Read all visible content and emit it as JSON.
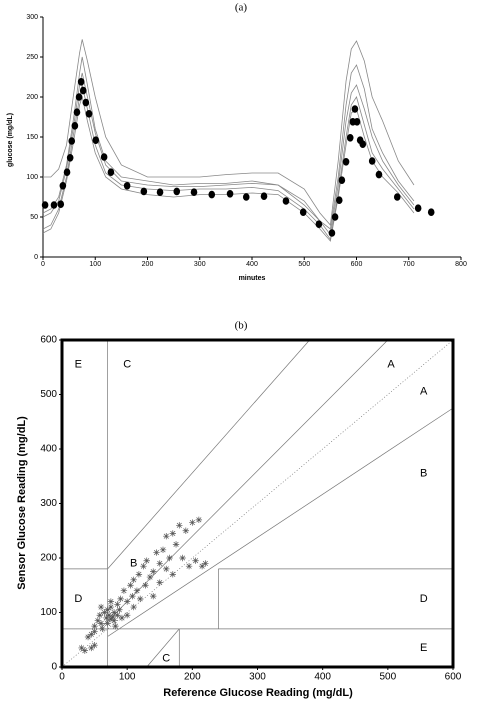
{
  "chart_data": [
    {
      "type": "line",
      "title": "(a)",
      "xlabel": "minutes",
      "ylabel": "glucose (mg/dL)",
      "xlim": [
        0,
        800
      ],
      "ylim": [
        0,
        300
      ],
      "xticks": [
        0,
        100,
        200,
        300,
        400,
        500,
        600,
        700,
        800
      ],
      "yticks": [
        0,
        50,
        100,
        150,
        200,
        250,
        300
      ],
      "x": [
        0,
        15,
        30,
        45,
        60,
        70,
        75,
        85,
        100,
        120,
        150,
        200,
        250,
        300,
        350,
        400,
        450,
        500,
        530,
        550,
        565,
        580,
        590,
        600,
        615,
        630,
        650,
        680,
        710
      ],
      "series": [
        {
          "color": "#888888",
          "values": [
            100,
            100,
            110,
            140,
            210,
            255,
            272,
            245,
            200,
            150,
            115,
            100,
            100,
            100,
            103,
            105,
            105,
            85,
            55,
            40,
            120,
            220,
            260,
            270,
            245,
            200,
            170,
            120,
            90
          ]
        },
        {
          "color": "#888888",
          "values": [
            55,
            60,
            75,
            115,
            180,
            230,
            250,
            215,
            160,
            120,
            100,
            95,
            90,
            92,
            92,
            95,
            90,
            70,
            45,
            35,
            100,
            190,
            230,
            240,
            210,
            160,
            130,
            95,
            70
          ]
        },
        {
          "color": "#888888",
          "values": [
            50,
            55,
            70,
            110,
            170,
            215,
            230,
            200,
            155,
            115,
            95,
            90,
            88,
            88,
            90,
            92,
            90,
            65,
            45,
            28,
            90,
            170,
            205,
            215,
            185,
            150,
            120,
            90,
            65
          ]
        },
        {
          "color": "#888888",
          "values": [
            35,
            40,
            60,
            100,
            160,
            200,
            215,
            185,
            140,
            105,
            90,
            85,
            83,
            85,
            85,
            87,
            83,
            60,
            40,
            22,
            80,
            150,
            190,
            200,
            165,
            130,
            110,
            85,
            60
          ]
        },
        {
          "color": "#888888",
          "values": [
            30,
            35,
            55,
            95,
            150,
            190,
            200,
            170,
            130,
            100,
            85,
            78,
            75,
            78,
            78,
            80,
            78,
            55,
            35,
            20,
            75,
            140,
            180,
            185,
            150,
            120,
            100,
            80,
            55
          ]
        }
      ],
      "points": {
        "color": "#000000",
        "x": [
          4,
          21,
          34,
          38,
          46,
          52,
          55,
          61,
          65,
          69,
          73,
          77,
          82,
          88,
          101,
          117,
          130,
          161,
          193,
          224,
          256,
          289,
          323,
          358,
          389,
          423,
          465,
          498,
          528,
          553,
          559,
          567,
          572,
          580,
          588,
          593,
          597,
          601,
          607,
          612,
          630,
          643,
          678,
          718,
          743
        ],
        "values": [
          65,
          65,
          66,
          89,
          106,
          124,
          145,
          164,
          181,
          200,
          219,
          208,
          193,
          179,
          146,
          125,
          106,
          89,
          82,
          81,
          82,
          81,
          78,
          79,
          75,
          76,
          70,
          56,
          41,
          30,
          50,
          71,
          96,
          119,
          149,
          169,
          185,
          169,
          146,
          141,
          120,
          103,
          75,
          61,
          56
        ]
      }
    },
    {
      "type": "scatter",
      "title": "(b)",
      "xlabel": "Reference Glucose Reading (mg/dL)",
      "ylabel": "Sensor Glucose Reading (mg/dL)",
      "xlim": [
        0,
        600
      ],
      "ylim": [
        0,
        600
      ],
      "xticks": [
        0,
        100,
        200,
        300,
        400,
        500,
        600
      ],
      "yticks": [
        0,
        100,
        200,
        300,
        400,
        500,
        600
      ],
      "color": "#555555",
      "annotations": [
        "E",
        "C",
        "A",
        "A",
        "B",
        "B",
        "D",
        "D",
        "C",
        "E"
      ],
      "x": [
        30,
        35,
        40,
        45,
        50,
        50,
        55,
        58,
        60,
        62,
        65,
        68,
        70,
        70,
        72,
        75,
        75,
        78,
        80,
        80,
        82,
        85,
        85,
        88,
        90,
        92,
        95,
        100,
        100,
        105,
        108,
        110,
        110,
        115,
        118,
        120,
        125,
        128,
        130,
        135,
        140,
        140,
        145,
        150,
        150,
        155,
        160,
        160,
        165,
        170,
        170,
        175,
        180,
        185,
        190,
        195,
        200,
        205,
        210,
        215,
        220,
        50,
        45,
        60,
        75
      ],
      "values": [
        35,
        30,
        55,
        60,
        75,
        65,
        85,
        95,
        80,
        70,
        100,
        90,
        105,
        80,
        95,
        110,
        88,
        92,
        100,
        85,
        75,
        95,
        115,
        105,
        125,
        90,
        140,
        120,
        95,
        150,
        130,
        160,
        110,
        140,
        170,
        125,
        185,
        150,
        195,
        165,
        175,
        130,
        210,
        190,
        155,
        215,
        240,
        180,
        200,
        245,
        170,
        225,
        260,
        200,
        250,
        185,
        265,
        195,
        270,
        185,
        190,
        40,
        35,
        110,
        120
      ]
    }
  ]
}
